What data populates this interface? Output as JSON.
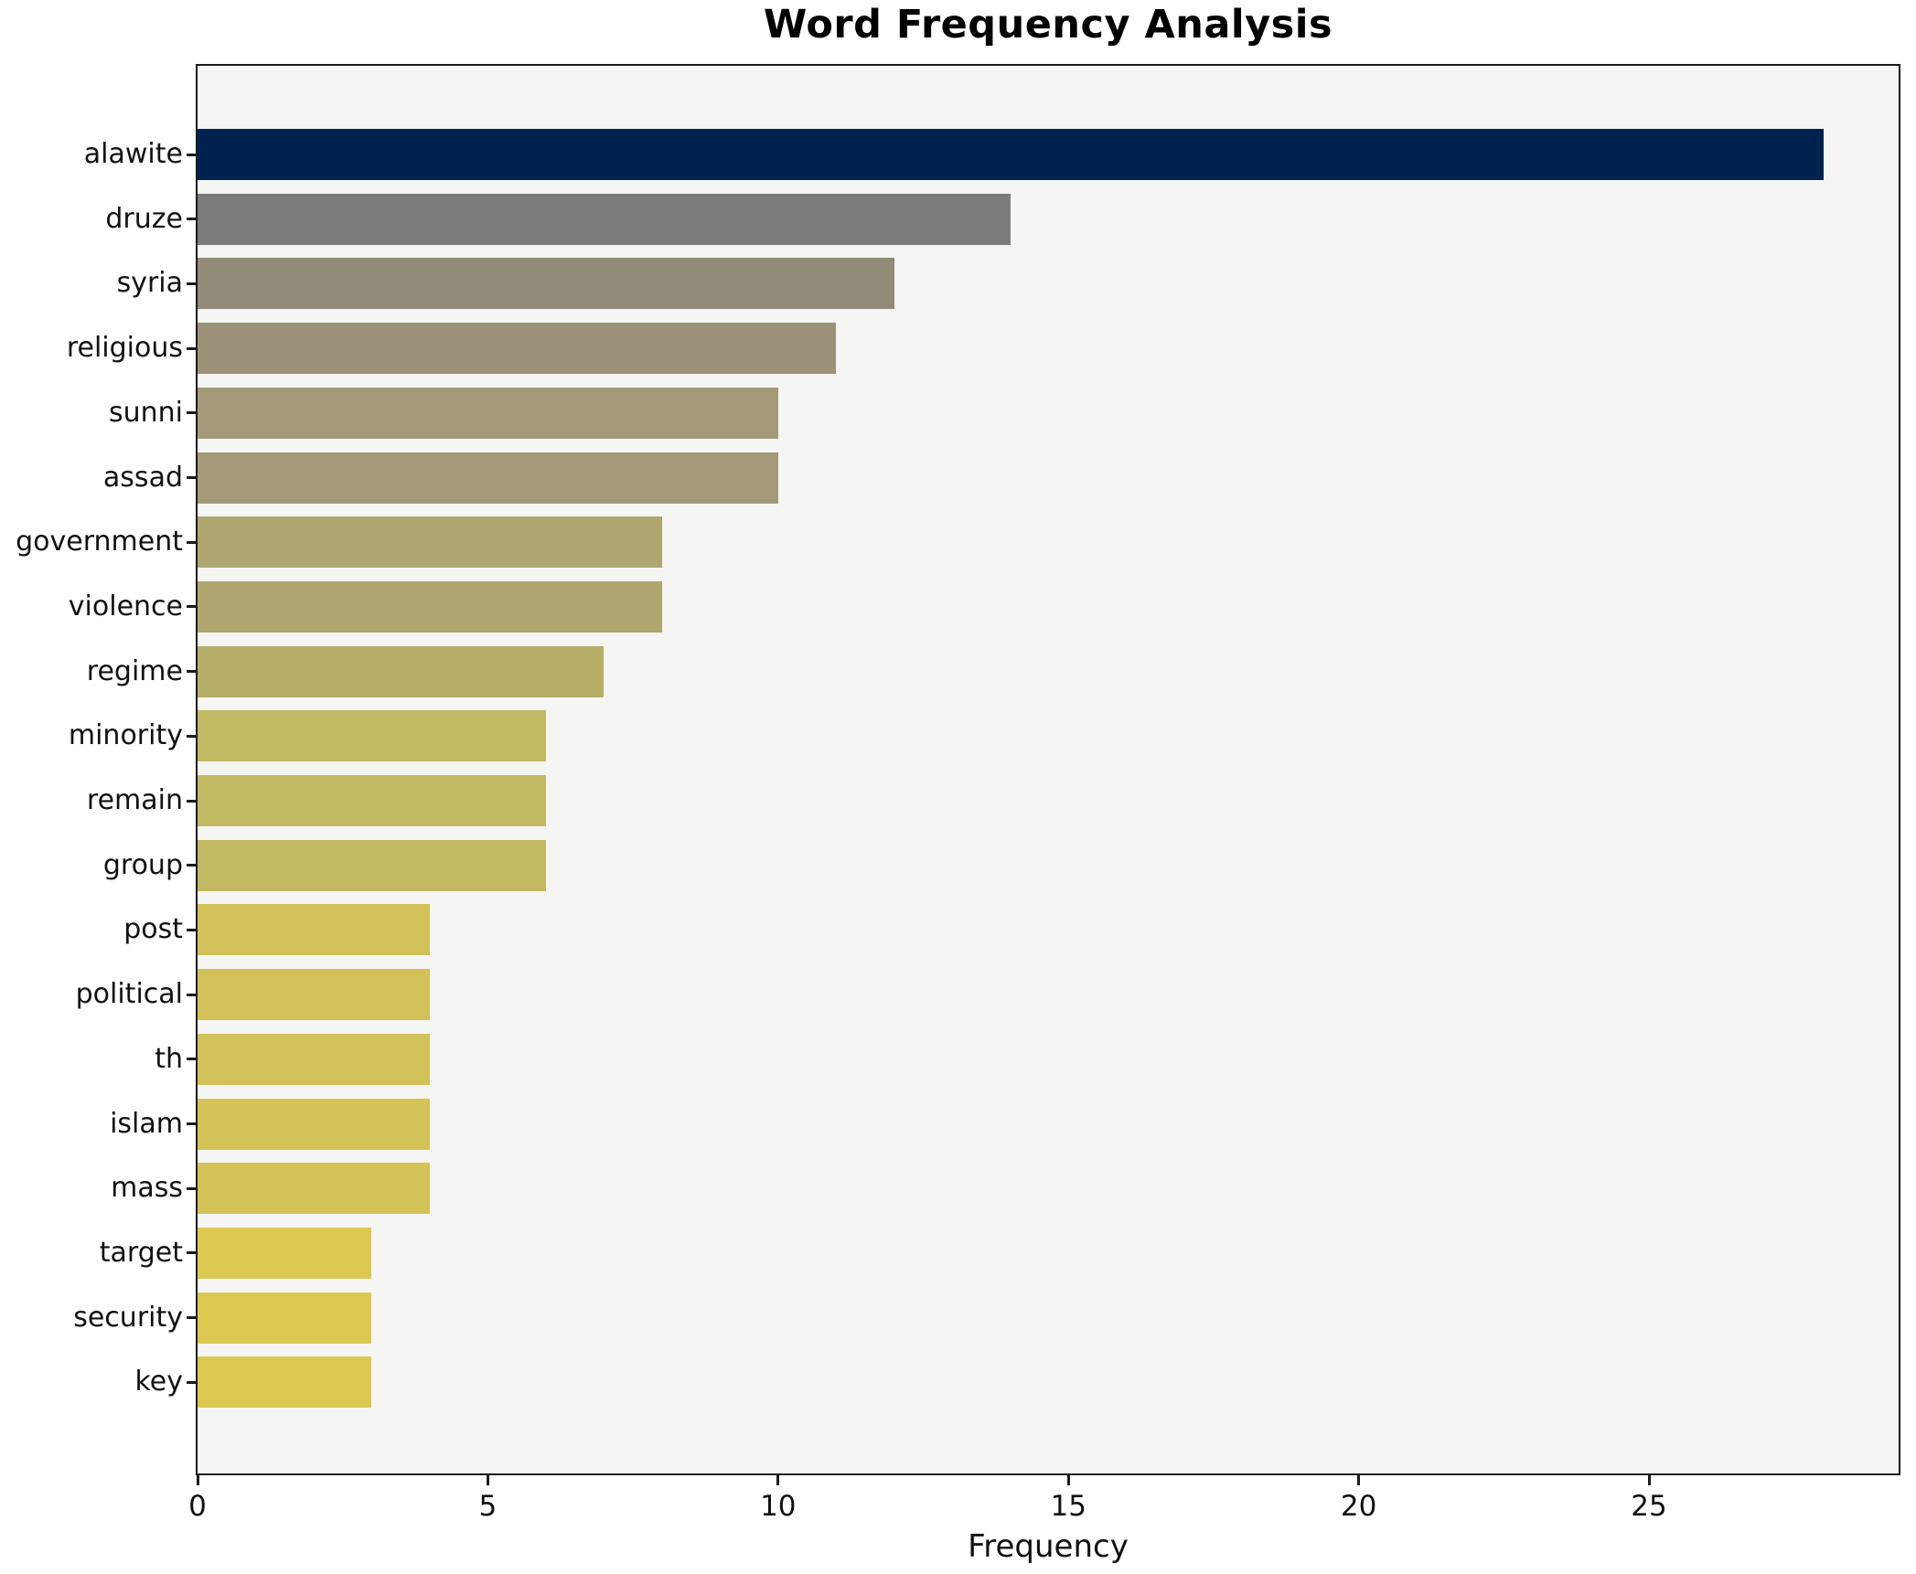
{
  "figure": {
    "background": "#ffffff",
    "plot_background": "#f5f5f3",
    "spine_color": "#1a1a1a"
  },
  "chart_data": {
    "type": "bar",
    "orientation": "horizontal",
    "title": "Word Frequency Analysis",
    "xlabel": "Frequency",
    "ylabel": "",
    "categories": [
      "alawite",
      "druze",
      "syria",
      "religious",
      "sunni",
      "assad",
      "government",
      "violence",
      "regime",
      "minority",
      "remain",
      "group",
      "post",
      "political",
      "th",
      "islam",
      "mass",
      "target",
      "security",
      "key"
    ],
    "values": [
      28,
      14,
      12,
      11,
      10,
      10,
      8,
      8,
      7,
      6,
      6,
      6,
      4,
      4,
      4,
      4,
      4,
      3,
      3,
      3
    ],
    "bar_colors": [
      "#00224e",
      "#7b7b78",
      "#918b77",
      "#9b9379",
      "#a29a79",
      "#a29a79",
      "#afa76f",
      "#afa76f",
      "#b6ad69",
      "#c3b862",
      "#c3b862",
      "#c3b862",
      "#d2c158",
      "#d2c158",
      "#d2c158",
      "#d4c356",
      "#d4c356",
      "#dcc951",
      "#dcc951",
      "#dcc951"
    ],
    "xticks": [
      0,
      5,
      10,
      15,
      20,
      25
    ],
    "xlim": [
      0,
      29.3
    ],
    "grid": false,
    "legend": null
  }
}
